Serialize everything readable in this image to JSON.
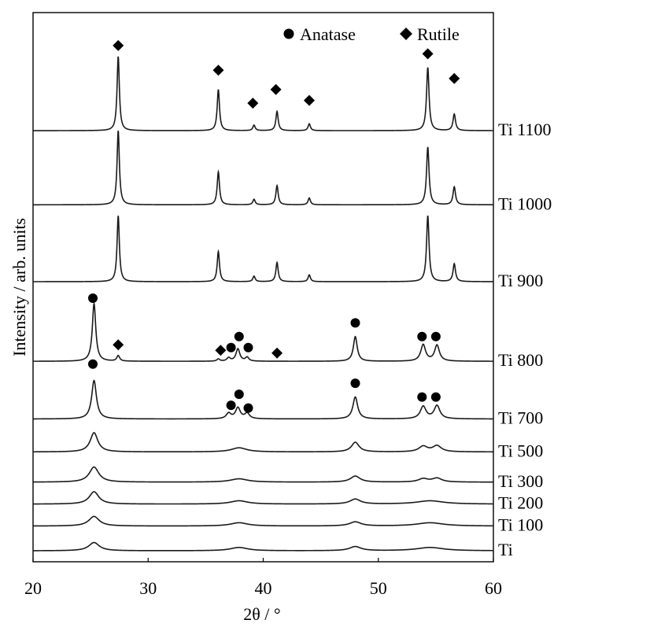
{
  "chart_data": {
    "type": "line",
    "title": "",
    "xlabel": "2θ / °",
    "ylabel": "Intensity / arb. units",
    "xlim": [
      20,
      60
    ],
    "x_ticks": [
      20,
      30,
      40,
      50,
      60
    ],
    "y_ticks": "none",
    "grid": false,
    "legend_position": "top-right",
    "legend": [
      {
        "marker": "circle",
        "label": "Anatase"
      },
      {
        "marker": "diamond",
        "label": "Rutile"
      }
    ],
    "series": [
      {
        "name": "Ti",
        "baseline": 0.04,
        "peaks": [
          [
            25.3,
            0.03,
            0.55
          ],
          [
            37.9,
            0.012,
            0.9
          ],
          [
            48.0,
            0.015,
            0.6
          ],
          [
            54.5,
            0.012,
            1.4
          ]
        ],
        "markers": []
      },
      {
        "name": "Ti 100",
        "baseline": 0.13,
        "peaks": [
          [
            25.3,
            0.035,
            0.55
          ],
          [
            37.9,
            0.012,
            0.9
          ],
          [
            48.0,
            0.015,
            0.6
          ],
          [
            54.5,
            0.012,
            1.4
          ]
        ],
        "markers": []
      },
      {
        "name": "Ti 200",
        "baseline": 0.21,
        "peaks": [
          [
            25.3,
            0.045,
            0.5
          ],
          [
            37.9,
            0.012,
            0.9
          ],
          [
            48.0,
            0.018,
            0.55
          ],
          [
            54.5,
            0.012,
            1.4
          ]
        ],
        "markers": []
      },
      {
        "name": "Ti 300",
        "baseline": 0.29,
        "peaks": [
          [
            25.3,
            0.055,
            0.5
          ],
          [
            37.9,
            0.012,
            0.9
          ],
          [
            48.0,
            0.022,
            0.5
          ],
          [
            53.9,
            0.012,
            0.5
          ],
          [
            55.1,
            0.014,
            0.5
          ]
        ],
        "markers": []
      },
      {
        "name": "Ti 500",
        "baseline": 0.4,
        "peaks": [
          [
            25.3,
            0.07,
            0.4
          ],
          [
            37.9,
            0.015,
            0.8
          ],
          [
            48.0,
            0.035,
            0.4
          ],
          [
            53.9,
            0.02,
            0.45
          ],
          [
            55.1,
            0.022,
            0.45
          ]
        ],
        "markers": []
      },
      {
        "name": "Ti 700",
        "baseline": 0.52,
        "peaks": [
          [
            25.3,
            0.14,
            0.25
          ],
          [
            37.0,
            0.02,
            0.25
          ],
          [
            37.8,
            0.04,
            0.25
          ],
          [
            38.6,
            0.02,
            0.25
          ],
          [
            48.0,
            0.08,
            0.25
          ],
          [
            53.9,
            0.045,
            0.3
          ],
          [
            55.1,
            0.048,
            0.3
          ]
        ],
        "markers": [
          {
            "x": 25.2,
            "y": 0.72,
            "type": "anatase"
          },
          {
            "x": 37.2,
            "y": 0.57,
            "type": "anatase"
          },
          {
            "x": 37.9,
            "y": 0.61,
            "type": "anatase"
          },
          {
            "x": 38.7,
            "y": 0.56,
            "type": "anatase"
          },
          {
            "x": 48.0,
            "y": 0.65,
            "type": "anatase"
          },
          {
            "x": 53.8,
            "y": 0.6,
            "type": "anatase"
          },
          {
            "x": 55.0,
            "y": 0.6,
            "type": "anatase"
          }
        ]
      },
      {
        "name": "Ti 800",
        "baseline": 0.73,
        "peaks": [
          [
            25.3,
            0.21,
            0.18
          ],
          [
            27.4,
            0.02,
            0.15
          ],
          [
            36.1,
            0.008,
            0.15
          ],
          [
            37.0,
            0.012,
            0.18
          ],
          [
            37.8,
            0.045,
            0.2
          ],
          [
            38.6,
            0.014,
            0.18
          ],
          [
            48.0,
            0.09,
            0.2
          ],
          [
            53.9,
            0.06,
            0.25
          ],
          [
            55.1,
            0.058,
            0.25
          ]
        ],
        "markers": [
          {
            "x": 25.2,
            "y": 0.96,
            "type": "anatase"
          },
          {
            "x": 27.4,
            "y": 0.79,
            "type": "rutile"
          },
          {
            "x": 36.3,
            "y": 0.77,
            "type": "rutile"
          },
          {
            "x": 37.2,
            "y": 0.78,
            "type": "anatase"
          },
          {
            "x": 37.9,
            "y": 0.82,
            "type": "anatase"
          },
          {
            "x": 38.7,
            "y": 0.78,
            "type": "anatase"
          },
          {
            "x": 41.2,
            "y": 0.76,
            "type": "rutile"
          },
          {
            "x": 48.0,
            "y": 0.87,
            "type": "anatase"
          },
          {
            "x": 53.8,
            "y": 0.82,
            "type": "anatase"
          },
          {
            "x": 55.0,
            "y": 0.82,
            "type": "anatase"
          }
        ]
      },
      {
        "name": "Ti 900",
        "baseline": 1.02,
        "peaks": [
          [
            27.4,
            0.24,
            0.12
          ],
          [
            36.1,
            0.11,
            0.12
          ],
          [
            39.2,
            0.02,
            0.12
          ],
          [
            41.2,
            0.07,
            0.12
          ],
          [
            44.0,
            0.025,
            0.12
          ],
          [
            54.3,
            0.24,
            0.13
          ],
          [
            56.6,
            0.065,
            0.13
          ]
        ],
        "markers": []
      },
      {
        "name": "Ti 1000",
        "baseline": 1.3,
        "peaks": [
          [
            27.4,
            0.27,
            0.12
          ],
          [
            36.1,
            0.12,
            0.12
          ],
          [
            39.2,
            0.02,
            0.12
          ],
          [
            41.2,
            0.07,
            0.12
          ],
          [
            44.0,
            0.025,
            0.12
          ],
          [
            54.3,
            0.21,
            0.13
          ],
          [
            56.6,
            0.065,
            0.13
          ]
        ],
        "markers": []
      },
      {
        "name": "Ti 1100",
        "baseline": 1.57,
        "peaks": [
          [
            27.4,
            0.27,
            0.12
          ],
          [
            36.1,
            0.15,
            0.12
          ],
          [
            39.2,
            0.02,
            0.12
          ],
          [
            41.2,
            0.07,
            0.12
          ],
          [
            44.0,
            0.025,
            0.12
          ],
          [
            54.3,
            0.23,
            0.13
          ],
          [
            56.6,
            0.06,
            0.13
          ]
        ],
        "markers": [
          {
            "x": 27.4,
            "y": 1.88,
            "type": "rutile"
          },
          {
            "x": 36.1,
            "y": 1.79,
            "type": "rutile"
          },
          {
            "x": 39.1,
            "y": 1.67,
            "type": "rutile"
          },
          {
            "x": 41.1,
            "y": 1.72,
            "type": "rutile"
          },
          {
            "x": 44.0,
            "y": 1.68,
            "type": "rutile"
          },
          {
            "x": 54.3,
            "y": 1.85,
            "type": "rutile"
          },
          {
            "x": 56.6,
            "y": 1.76,
            "type": "rutile"
          }
        ]
      }
    ]
  }
}
